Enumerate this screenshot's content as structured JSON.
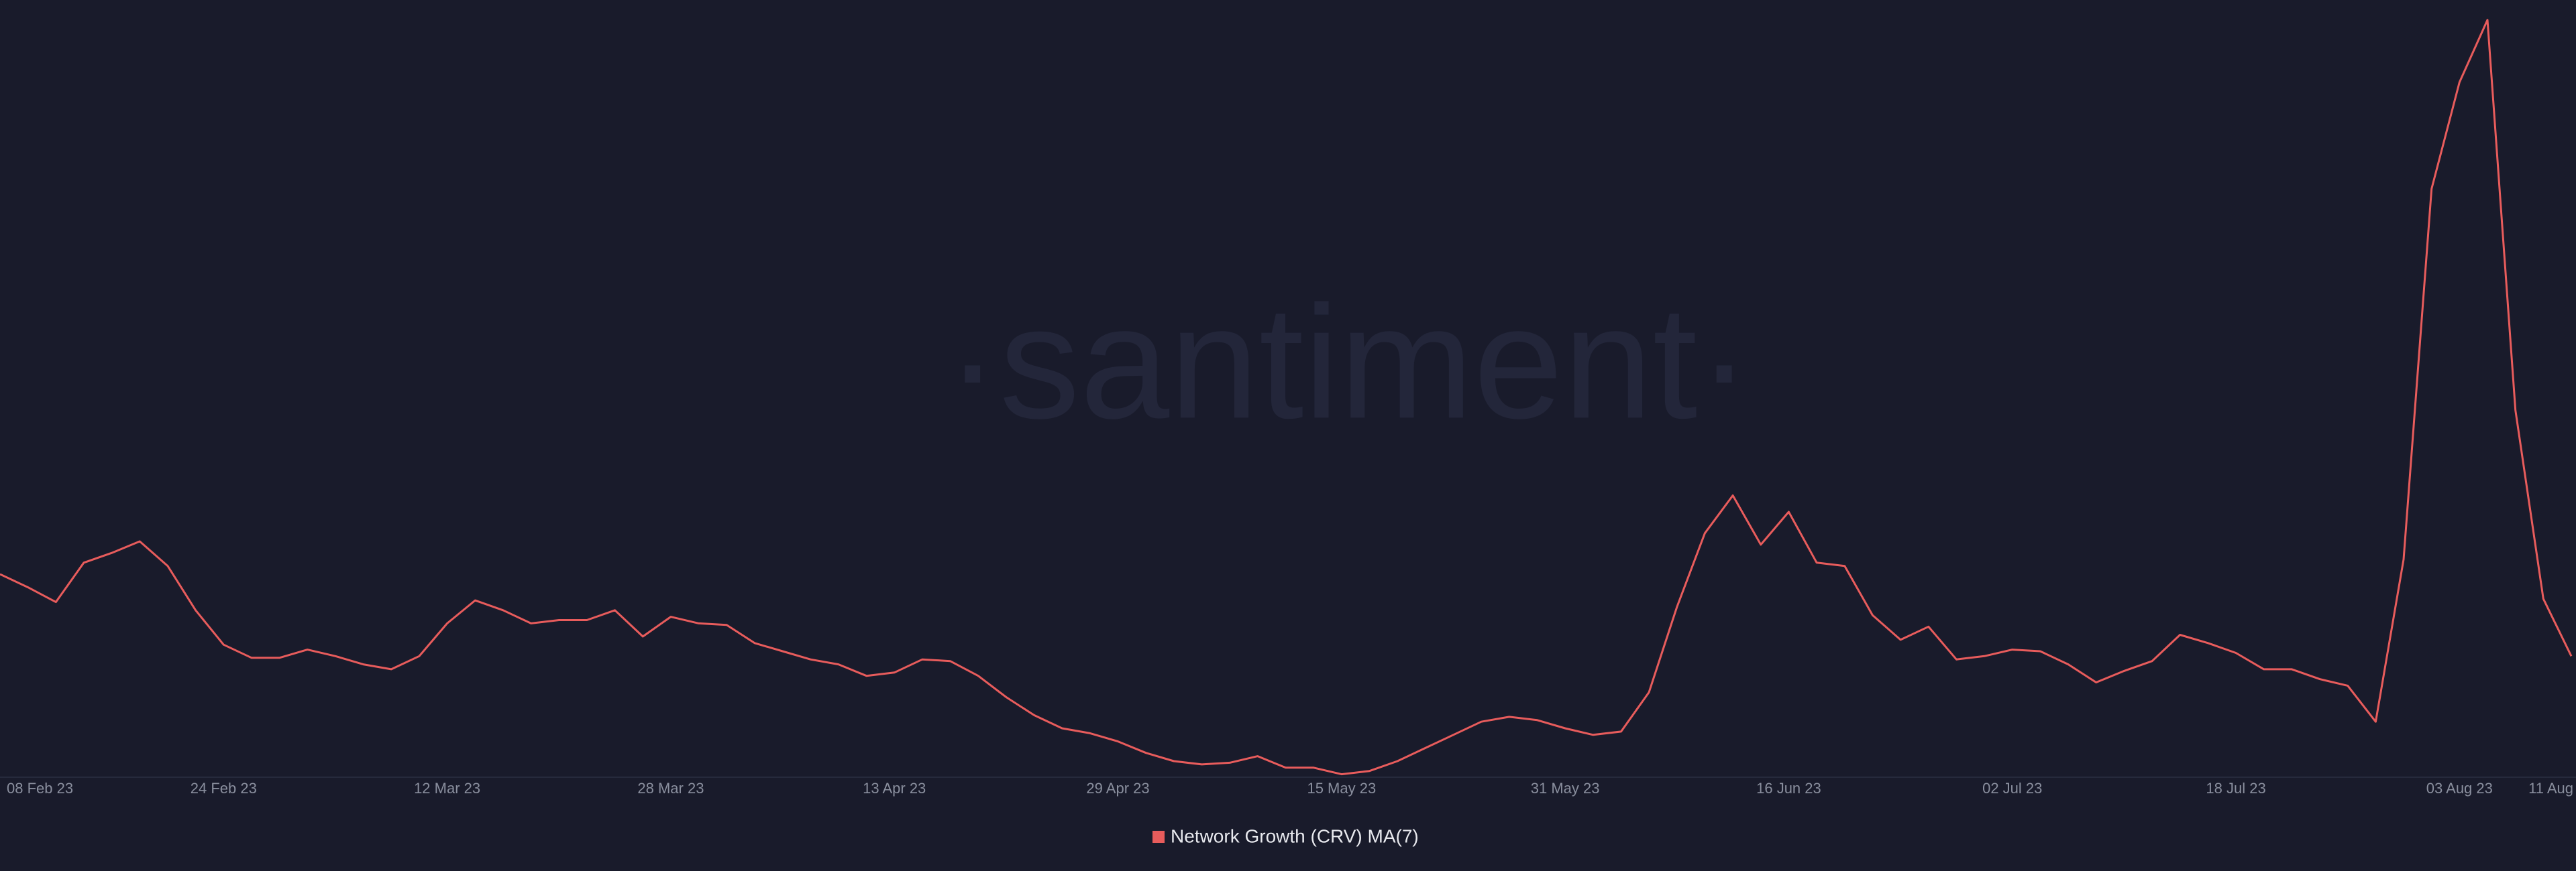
{
  "chart_data": {
    "type": "line",
    "watermark": "·santiment·",
    "x": [
      "08 Feb 23",
      "10 Feb 23",
      "12 Feb 23",
      "14 Feb 23",
      "16 Feb 23",
      "18 Feb 23",
      "20 Feb 23",
      "22 Feb 23",
      "24 Feb 23",
      "26 Feb 23",
      "28 Feb 23",
      "02 Mar 23",
      "04 Mar 23",
      "06 Mar 23",
      "08 Mar 23",
      "10 Mar 23",
      "12 Mar 23",
      "14 Mar 23",
      "16 Mar 23",
      "18 Mar 23",
      "20 Mar 23",
      "22 Mar 23",
      "24 Mar 23",
      "26 Mar 23",
      "28 Mar 23",
      "30 Mar 23",
      "01 Apr 23",
      "03 Apr 23",
      "05 Apr 23",
      "07 Apr 23",
      "09 Apr 23",
      "11 Apr 23",
      "13 Apr 23",
      "15 Apr 23",
      "17 Apr 23",
      "19 Apr 23",
      "21 Apr 23",
      "23 Apr 23",
      "25 Apr 23",
      "27 Apr 23",
      "29 Apr 23",
      "01 May 23",
      "03 May 23",
      "05 May 23",
      "07 May 23",
      "09 May 23",
      "11 May 23",
      "13 May 23",
      "15 May 23",
      "17 May 23",
      "19 May 23",
      "21 May 23",
      "23 May 23",
      "25 May 23",
      "27 May 23",
      "29 May 23",
      "31 May 23",
      "02 Jun 23",
      "04 Jun 23",
      "06 Jun 23",
      "08 Jun 23",
      "10 Jun 23",
      "12 Jun 23",
      "14 Jun 23",
      "16 Jun 23",
      "18 Jun 23",
      "20 Jun 23",
      "22 Jun 23",
      "24 Jun 23",
      "26 Jun 23",
      "28 Jun 23",
      "30 Jun 23",
      "02 Jul 23",
      "04 Jul 23",
      "06 Jul 23",
      "08 Jul 23",
      "10 Jul 23",
      "12 Jul 23",
      "14 Jul 23",
      "16 Jul 23",
      "18 Jul 23",
      "20 Jul 23",
      "22 Jul 23",
      "24 Jul 23",
      "26 Jul 23",
      "28 Jul 23",
      "30 Jul 23",
      "01 Aug 23",
      "03 Aug 23",
      "05 Aug 23",
      "07 Aug 23",
      "09 Aug 23",
      "11 Aug 23"
    ],
    "series": [
      {
        "name": "Network Growth (CRV) MA(7)",
        "color": "#e85c5c",
        "values": [
          123,
          115,
          106,
          130,
          136,
          143,
          128,
          101,
          80,
          72,
          72,
          77,
          73,
          68,
          65,
          73,
          93,
          107,
          101,
          93,
          95,
          95,
          101,
          85,
          97,
          93,
          92,
          81,
          76,
          71,
          68,
          61,
          63,
          71,
          70,
          61,
          48,
          37,
          29,
          26,
          21,
          14,
          9,
          7,
          8,
          12,
          5,
          5,
          1,
          3,
          9,
          17,
          25,
          33,
          36,
          34,
          29,
          25,
          27,
          51,
          103,
          148,
          171,
          141,
          161,
          130,
          128,
          98,
          83,
          91,
          71,
          73,
          77,
          76,
          68,
          57,
          64,
          70,
          86,
          81,
          75,
          65,
          65,
          59,
          55,
          33,
          132,
          358,
          423,
          461,
          223,
          108,
          73
        ]
      }
    ],
    "ylim": [
      0,
      465
    ],
    "xticks": [
      "08 Feb 23",
      "24 Feb 23",
      "12 Mar 23",
      "28 Mar 23",
      "13 Apr 23",
      "29 Apr 23",
      "15 May 23",
      "31 May 23",
      "16 Jun 23",
      "02 Jul 23",
      "18 Jul 23",
      "03 Aug 23",
      {
        "value": "11 Aug 23",
        "label": "11 Aug"
      }
    ]
  }
}
